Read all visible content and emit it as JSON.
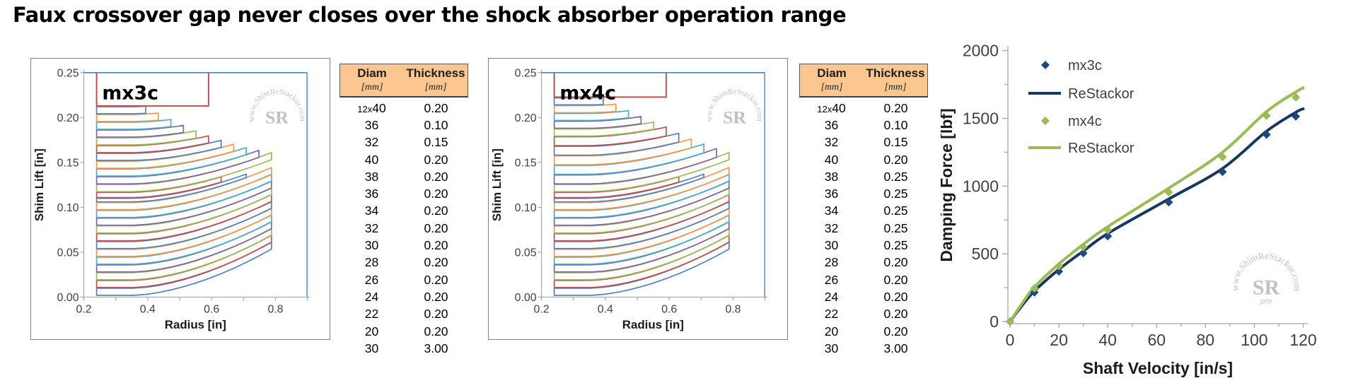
{
  "title": "Faux crossover gap never closes over the shock absorber operation range",
  "watermark": {
    "ring": "www.ShimReStackor.com",
    "center": "SR",
    "sub": "pro"
  },
  "colors": {
    "slat_palette": [
      "#4F81BD",
      "#C0504D",
      "#9BBB59",
      "#8064A2",
      "#4BACC6",
      "#F79646"
    ],
    "clamp": "#C0504D",
    "frame": "#4F81BD",
    "axis": "#A6A6A6",
    "text": "#404040",
    "navy": "#1F497D",
    "navy_line": "#17375E",
    "green": "#9BBB59",
    "table_header_bg": "#FBC690",
    "box_border": "#808080",
    "watermark": "#8F8F8F"
  },
  "chart_data": [
    {
      "type": "line",
      "title": "mx3c",
      "xlabel": "Radius [in]",
      "ylabel": "Shim Lift [in]",
      "xlim": [
        0.2,
        0.9
      ],
      "ylim": [
        0,
        0.25
      ],
      "xticks": [
        0.2,
        0.4,
        0.6,
        0.8
      ],
      "yticks": [
        "0.00",
        "0.05",
        "0.10",
        "0.15",
        "0.20",
        "0.25"
      ],
      "description": "Shim stack lift profiles; each trace is one shim of the stack (clamp shown as red rectangle at top)",
      "stack_table": {
        "headers": [
          "Diam",
          "Thickness"
        ],
        "units": [
          "[mm]",
          "[mm]"
        ],
        "rows": [
          [
            "12x40",
            "0.20"
          ],
          [
            "36",
            "0.10"
          ],
          [
            "32",
            "0.15"
          ],
          [
            "40",
            "0.20"
          ],
          [
            "38",
            "0.20"
          ],
          [
            "36",
            "0.20"
          ],
          [
            "34",
            "0.20"
          ],
          [
            "32",
            "0.20"
          ],
          [
            "30",
            "0.20"
          ],
          [
            "28",
            "0.20"
          ],
          [
            "26",
            "0.20"
          ],
          [
            "24",
            "0.20"
          ],
          [
            "22",
            "0.20"
          ],
          [
            "20",
            "0.20"
          ],
          [
            "30",
            "3.00"
          ]
        ]
      }
    },
    {
      "type": "line",
      "title": "mx4c",
      "xlabel": "Radius [in]",
      "ylabel": "Shim Lift [in]",
      "xlim": [
        0.2,
        0.9
      ],
      "ylim": [
        0,
        0.25
      ],
      "xticks": [
        0.2,
        0.4,
        0.6,
        0.8
      ],
      "yticks": [
        "0.00",
        "0.05",
        "0.10",
        "0.15",
        "0.20",
        "0.25"
      ],
      "description": "Shim stack lift profiles; each trace is one shim of the stack (clamp shown as red rectangle at top)",
      "stack_table": {
        "headers": [
          "Diam",
          "Thickness"
        ],
        "units": [
          "[mm]",
          "[mm]"
        ],
        "rows": [
          [
            "12x40",
            "0.20"
          ],
          [
            "36",
            "0.10"
          ],
          [
            "32",
            "0.15"
          ],
          [
            "40",
            "0.20"
          ],
          [
            "38",
            "0.25"
          ],
          [
            "36",
            "0.25"
          ],
          [
            "34",
            "0.25"
          ],
          [
            "32",
            "0.25"
          ],
          [
            "30",
            "0.25"
          ],
          [
            "28",
            "0.20"
          ],
          [
            "26",
            "0.20"
          ],
          [
            "24",
            "0.20"
          ],
          [
            "22",
            "0.20"
          ],
          [
            "20",
            "0.20"
          ],
          [
            "30",
            "3.00"
          ]
        ]
      }
    },
    {
      "type": "scatter",
      "title": "",
      "xlabel": "Shaft Velocity [in/s]",
      "ylabel": "Damping Force [lbf]",
      "xlim": [
        0,
        120
      ],
      "ylim": [
        0,
        2000
      ],
      "xticks": [
        0,
        20,
        40,
        60,
        80,
        100,
        120
      ],
      "yticks": [
        0,
        500,
        1000,
        1500,
        2000
      ],
      "legend_position": "upper-left",
      "series": [
        {
          "name": "mx3c",
          "style": "markers",
          "color_key": "navy",
          "points": [
            [
              0,
              0
            ],
            [
              10,
              215
            ],
            [
              20,
              370
            ],
            [
              30,
              505
            ],
            [
              40,
              630
            ],
            [
              65,
              880
            ],
            [
              87,
              1105
            ],
            [
              105,
              1380
            ],
            [
              117,
              1515
            ]
          ]
        },
        {
          "name": "ReStackor",
          "style": "line",
          "color_key": "navy",
          "points": [
            [
              0,
              0
            ],
            [
              5,
              120
            ],
            [
              10,
              225
            ],
            [
              20,
              385
            ],
            [
              30,
              520
            ],
            [
              40,
              650
            ],
            [
              65,
              905
            ],
            [
              87,
              1130
            ],
            [
              105,
              1405
            ],
            [
              117,
              1545
            ],
            [
              120,
              1570
            ]
          ]
        },
        {
          "name": "mx4c",
          "style": "markers",
          "color_key": "green",
          "points": [
            [
              0,
              0
            ],
            [
              10,
              245
            ],
            [
              20,
              410
            ],
            [
              30,
              550
            ],
            [
              40,
              675
            ],
            [
              65,
              955
            ],
            [
              87,
              1215
            ],
            [
              105,
              1520
            ],
            [
              117,
              1655
            ]
          ]
        },
        {
          "name": "ReStackor",
          "style": "line",
          "color_key": "green",
          "points": [
            [
              0,
              0
            ],
            [
              5,
              135
            ],
            [
              10,
              255
            ],
            [
              20,
              425
            ],
            [
              30,
              570
            ],
            [
              40,
              700
            ],
            [
              65,
              985
            ],
            [
              87,
              1250
            ],
            [
              105,
              1550
            ],
            [
              117,
              1695
            ],
            [
              120,
              1725
            ]
          ]
        }
      ]
    }
  ]
}
